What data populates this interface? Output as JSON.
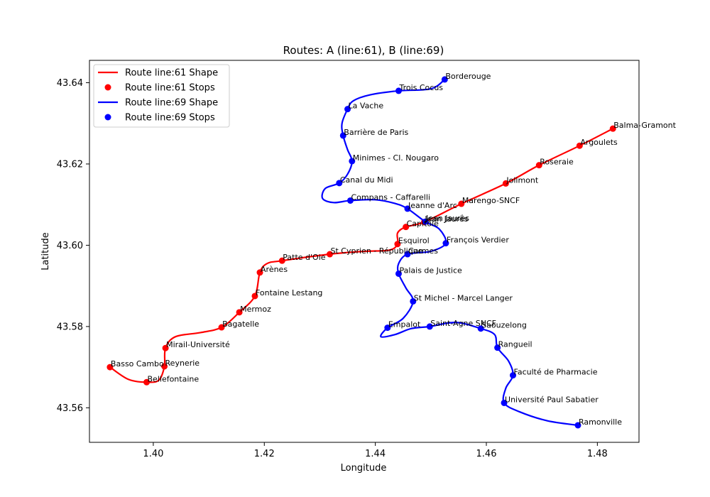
{
  "chart_data": {
    "type": "line",
    "title": "Routes: A (line:61), B (line:69)",
    "xlabel": "Longitude",
    "ylabel": "Latitude",
    "xlim": [
      1.3885,
      1.4875
    ],
    "ylim": [
      43.5515,
      43.6455
    ],
    "xticks": [
      1.4,
      1.42,
      1.44,
      1.46,
      1.48
    ],
    "xtick_labels": [
      "1.40",
      "1.42",
      "1.44",
      "1.46",
      "1.48"
    ],
    "yticks": [
      43.56,
      43.58,
      43.6,
      43.62,
      43.64
    ],
    "ytick_labels": [
      "43.56",
      "43.58",
      "43.60",
      "43.62",
      "43.64"
    ],
    "grid": false,
    "legend_position": "top-left",
    "legend": [
      {
        "label": "Route line:61 Shape",
        "kind": "line",
        "color": "#ff0000"
      },
      {
        "label": "Route line:61 Stops",
        "kind": "marker",
        "color": "#ff0000"
      },
      {
        "label": "Route line:69 Shape",
        "kind": "line",
        "color": "#0000ff"
      },
      {
        "label": "Route line:69 Stops",
        "kind": "marker",
        "color": "#0000ff"
      }
    ],
    "series": [
      {
        "name": "Route line:61",
        "color": "#ff0000",
        "stops": [
          {
            "name": "Basso Cambo",
            "lon": 1.3922,
            "lat": 43.57
          },
          {
            "name": "Bellefontaine",
            "lon": 1.3988,
            "lat": 43.5663
          },
          {
            "name": "Reynerie",
            "lon": 1.402,
            "lat": 43.5702
          },
          {
            "name": "Mirail-Université",
            "lon": 1.4022,
            "lat": 43.5747
          },
          {
            "name": "Bagatelle",
            "lon": 1.4123,
            "lat": 43.5798
          },
          {
            "name": "Mermoz",
            "lon": 1.4155,
            "lat": 43.5835
          },
          {
            "name": "Fontaine Lestang",
            "lon": 1.4183,
            "lat": 43.5875
          },
          {
            "name": "Arènes",
            "lon": 1.4192,
            "lat": 43.5933
          },
          {
            "name": "Patte d'Oie",
            "lon": 1.4232,
            "lat": 43.5962
          },
          {
            "name": "St Cyprien - République",
            "lon": 1.4318,
            "lat": 43.5978
          },
          {
            "name": "Esquirol",
            "lon": 1.444,
            "lat": 43.6003
          },
          {
            "name": "Capitole",
            "lon": 1.4455,
            "lat": 43.6045
          },
          {
            "name": "Jean Jaurès",
            "lon": 1.4488,
            "lat": 43.6057
          },
          {
            "name": "Marengo-SNCF",
            "lon": 1.4555,
            "lat": 43.6102
          },
          {
            "name": "Jolimont",
            "lon": 1.4635,
            "lat": 43.6152
          },
          {
            "name": "Roseraie",
            "lon": 1.4695,
            "lat": 43.6197
          },
          {
            "name": "Argoulets",
            "lon": 1.4768,
            "lat": 43.6245
          },
          {
            "name": "Balma-Gramont",
            "lon": 1.4828,
            "lat": 43.6287
          }
        ],
        "shape": [
          [
            1.3922,
            43.57
          ],
          [
            1.3955,
            43.567
          ],
          [
            1.3988,
            43.5663
          ],
          [
            1.401,
            43.5668
          ],
          [
            1.402,
            43.5702
          ],
          [
            1.4022,
            43.5747
          ],
          [
            1.404,
            43.5775
          ],
          [
            1.4085,
            43.5785
          ],
          [
            1.4123,
            43.5798
          ],
          [
            1.4155,
            43.5835
          ],
          [
            1.4183,
            43.5875
          ],
          [
            1.4192,
            43.5933
          ],
          [
            1.4205,
            43.5955
          ],
          [
            1.4232,
            43.5962
          ],
          [
            1.4318,
            43.5978
          ],
          [
            1.438,
            43.5985
          ],
          [
            1.4425,
            43.5988
          ],
          [
            1.444,
            43.6003
          ],
          [
            1.444,
            43.603
          ],
          [
            1.4455,
            43.6045
          ],
          [
            1.4488,
            43.6057
          ],
          [
            1.4555,
            43.6102
          ],
          [
            1.4635,
            43.6152
          ],
          [
            1.4695,
            43.6197
          ],
          [
            1.4768,
            43.6245
          ],
          [
            1.4828,
            43.6287
          ]
        ]
      },
      {
        "name": "Route line:69",
        "color": "#0000ff",
        "stops": [
          {
            "name": "Borderouge",
            "lon": 1.4525,
            "lat": 43.6408
          },
          {
            "name": "Trois Cocus",
            "lon": 1.4442,
            "lat": 43.638
          },
          {
            "name": "La Vache",
            "lon": 1.435,
            "lat": 43.6335
          },
          {
            "name": "Barrière de Paris",
            "lon": 1.4342,
            "lat": 43.627
          },
          {
            "name": "Minimes - Cl. Nougaro",
            "lon": 1.4358,
            "lat": 43.6207
          },
          {
            "name": "Canal du Midi",
            "lon": 1.4335,
            "lat": 43.6153
          },
          {
            "name": "Compans - Caffarelli",
            "lon": 1.4355,
            "lat": 43.611
          },
          {
            "name": "Jeanne d'Arc",
            "lon": 1.4458,
            "lat": 43.609
          },
          {
            "name": "Jean Jaurès",
            "lon": 1.449,
            "lat": 43.6058
          },
          {
            "name": "François Verdier",
            "lon": 1.4527,
            "lat": 43.6005
          },
          {
            "name": "Carmes",
            "lon": 1.4458,
            "lat": 43.5978
          },
          {
            "name": "Palais de Justice",
            "lon": 1.4442,
            "lat": 43.593
          },
          {
            "name": "St Michel - Marcel Langer",
            "lon": 1.4468,
            "lat": 43.5862
          },
          {
            "name": "Empalot",
            "lon": 1.4422,
            "lat": 43.5797
          },
          {
            "name": "Saint-Agne SNCF",
            "lon": 1.4498,
            "lat": 43.58
          },
          {
            "name": "Saouzelong",
            "lon": 1.459,
            "lat": 43.5795
          },
          {
            "name": "Rangueil",
            "lon": 1.462,
            "lat": 43.5748
          },
          {
            "name": "Faculté de Pharmacie",
            "lon": 1.4648,
            "lat": 43.568
          },
          {
            "name": "Université Paul Sabatier",
            "lon": 1.4632,
            "lat": 43.5612
          },
          {
            "name": "Ramonville",
            "lon": 1.4765,
            "lat": 43.5557
          }
        ],
        "shape": [
          [
            1.4525,
            43.6408
          ],
          [
            1.45,
            43.6385
          ],
          [
            1.4442,
            43.638
          ],
          [
            1.439,
            43.637
          ],
          [
            1.436,
            43.6355
          ],
          [
            1.435,
            43.6335
          ],
          [
            1.434,
            43.63
          ],
          [
            1.4342,
            43.627
          ],
          [
            1.435,
            43.6235
          ],
          [
            1.4358,
            43.6207
          ],
          [
            1.435,
            43.6175
          ],
          [
            1.4335,
            43.6153
          ],
          [
            1.431,
            43.614
          ],
          [
            1.4305,
            43.6115
          ],
          [
            1.4325,
            43.6105
          ],
          [
            1.4355,
            43.611
          ],
          [
            1.44,
            43.6112
          ],
          [
            1.4435,
            43.6103
          ],
          [
            1.4458,
            43.609
          ],
          [
            1.449,
            43.6058
          ],
          [
            1.4515,
            43.604
          ],
          [
            1.4527,
            43.6005
          ],
          [
            1.45,
            43.5985
          ],
          [
            1.4458,
            43.5978
          ],
          [
            1.4442,
            43.5955
          ],
          [
            1.4442,
            43.593
          ],
          [
            1.4455,
            43.5895
          ],
          [
            1.4468,
            43.5862
          ],
          [
            1.445,
            43.582
          ],
          [
            1.4422,
            43.5797
          ],
          [
            1.441,
            43.5775
          ],
          [
            1.4435,
            43.578
          ],
          [
            1.4465,
            43.5795
          ],
          [
            1.4498,
            43.58
          ],
          [
            1.4545,
            43.581
          ],
          [
            1.459,
            43.5795
          ],
          [
            1.4615,
            43.578
          ],
          [
            1.462,
            43.5748
          ],
          [
            1.464,
            43.5715
          ],
          [
            1.4648,
            43.568
          ],
          [
            1.4635,
            43.5648
          ],
          [
            1.4632,
            43.5612
          ],
          [
            1.466,
            43.559
          ],
          [
            1.471,
            43.5568
          ],
          [
            1.4765,
            43.5557
          ]
        ]
      }
    ]
  }
}
